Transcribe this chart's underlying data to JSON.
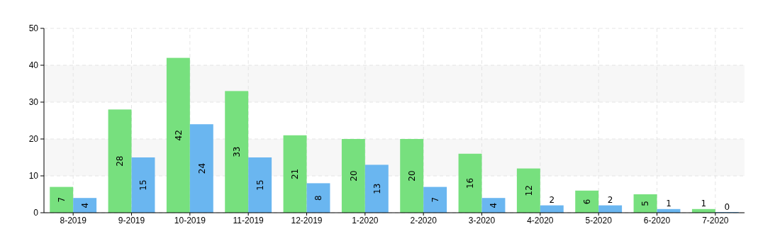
{
  "chart_data": {
    "type": "bar",
    "categories": [
      "8-2019",
      "9-2019",
      "10-2019",
      "11-2019",
      "12-2019",
      "1-2020",
      "2-2020",
      "3-2020",
      "4-2020",
      "5-2020",
      "6-2020",
      "7-2020"
    ],
    "series": [
      {
        "color": "#77e07e",
        "values": [
          7,
          28,
          42,
          33,
          21,
          20,
          20,
          16,
          12,
          6,
          5,
          1
        ]
      },
      {
        "color": "#6ab6f0",
        "values": [
          4,
          15,
          24,
          15,
          8,
          13,
          7,
          4,
          2,
          2,
          1,
          0
        ]
      }
    ],
    "ylim": [
      0,
      50
    ],
    "yticks": [
      0,
      10,
      20,
      30,
      40,
      50
    ],
    "grid": true,
    "data_labels": true,
    "bands": [
      {
        "axis": "y",
        "from": 10,
        "to": 20,
        "color": "#f7f7f7"
      },
      {
        "axis": "y",
        "from": 30,
        "to": 40,
        "color": "#f7f7f7"
      }
    ]
  }
}
